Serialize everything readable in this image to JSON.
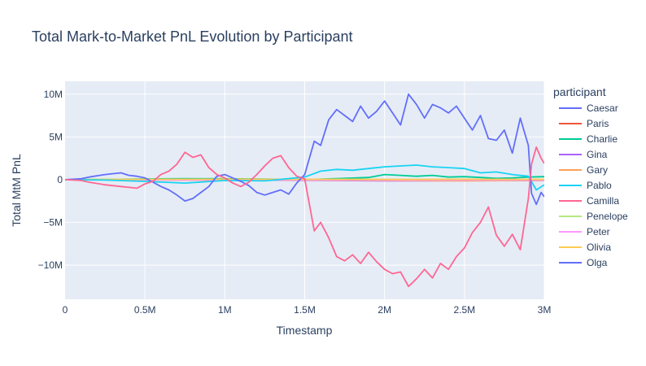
{
  "chart_data": {
    "type": "line",
    "title": "Total Mark-to-Market PnL Evolution by Participant",
    "xlabel": "Timestamp",
    "ylabel": "Total MtM PnL",
    "xlim": [
      0,
      3000000
    ],
    "ylim": [
      -14000000,
      11500000
    ],
    "x_ticks": [
      {
        "value": 0,
        "label": "0"
      },
      {
        "value": 500000,
        "label": "0.5M"
      },
      {
        "value": 1000000,
        "label": "1M"
      },
      {
        "value": 1500000,
        "label": "1.5M"
      },
      {
        "value": 2000000,
        "label": "2M"
      },
      {
        "value": 2500000,
        "label": "2.5M"
      },
      {
        "value": 3000000,
        "label": "3M"
      }
    ],
    "y_ticks": [
      {
        "value": 10000000,
        "label": "10M"
      },
      {
        "value": 5000000,
        "label": "5M"
      },
      {
        "value": 0,
        "label": "0"
      },
      {
        "value": -5000000,
        "label": "−5M"
      },
      {
        "value": -10000000,
        "label": "−10M"
      }
    ],
    "grid": true,
    "legend_title": "participant",
    "legend_position": "right",
    "series": [
      {
        "name": "Caesar",
        "color": "#636efa",
        "x": [
          0,
          100000,
          200000,
          300000,
          400000,
          500000,
          600000,
          700000,
          800000,
          900000,
          1000000,
          1100000,
          1200000,
          1300000,
          1400000,
          1500000,
          1550000,
          1600000,
          1700000,
          1800000,
          1900000,
          2000000,
          2100000,
          2200000,
          2300000,
          2400000,
          2500000,
          2600000,
          2700000,
          2800000,
          2900000,
          3000000
        ],
        "y": [
          0,
          0,
          0,
          0,
          0,
          0,
          0,
          0,
          0,
          0,
          0,
          0,
          0,
          0,
          0,
          0,
          0,
          0,
          0,
          0,
          0,
          0,
          0,
          0,
          0,
          0,
          0,
          0,
          0,
          0,
          0,
          0
        ]
      },
      {
        "name": "Paris",
        "color": "#EF553B",
        "x": [
          0,
          500000,
          1000000,
          1500000,
          2000000,
          2500000,
          3000000
        ],
        "y": [
          0,
          0,
          0,
          0,
          0,
          0,
          0
        ]
      },
      {
        "name": "Charlie",
        "color": "#00cc96",
        "x": [
          0,
          250000,
          500000,
          750000,
          1000000,
          1250000,
          1500000,
          1750000,
          1900000,
          2000000,
          2100000,
          2200000,
          2300000,
          2400000,
          2500000,
          2600000,
          2700000,
          2800000,
          2900000,
          3000000
        ],
        "y": [
          0,
          20000,
          80000,
          120000,
          100000,
          60000,
          0,
          150000,
          250000,
          600000,
          500000,
          400000,
          500000,
          300000,
          350000,
          250000,
          150000,
          200000,
          300000,
          350000
        ]
      },
      {
        "name": "Gina",
        "color": "#ab63fa",
        "x": [
          0,
          500000,
          1000000,
          1500000,
          2000000,
          2500000,
          3000000
        ],
        "y": [
          0,
          -20000,
          -50000,
          -80000,
          -150000,
          -120000,
          -100000
        ]
      },
      {
        "name": "Gary",
        "color": "#FFA15A",
        "x": [
          0,
          500000,
          1000000,
          1500000,
          2000000,
          2500000,
          3000000
        ],
        "y": [
          0,
          -30000,
          -60000,
          -40000,
          -100000,
          -150000,
          -80000
        ]
      },
      {
        "name": "Pablo",
        "color": "#19d3f3",
        "x": [
          0,
          250000,
          500000,
          750000,
          800000,
          1000000,
          1250000,
          1500000,
          1600000,
          1700000,
          1800000,
          1900000,
          2000000,
          2100000,
          2200000,
          2300000,
          2400000,
          2500000,
          2600000,
          2700000,
          2800000,
          2900000,
          2950000,
          3000000
        ],
        "y": [
          0,
          -50000,
          -200000,
          -400000,
          -350000,
          -100000,
          -150000,
          300000,
          1000000,
          1200000,
          1100000,
          1300000,
          1500000,
          1600000,
          1700000,
          1500000,
          1400000,
          1300000,
          800000,
          900000,
          600000,
          400000,
          -1200000,
          -600000
        ]
      },
      {
        "name": "Camilla",
        "color": "#FF6692",
        "x": [
          0,
          100000,
          150000,
          250000,
          350000,
          450000,
          500000,
          550000,
          600000,
          650000,
          700000,
          750000,
          800000,
          850000,
          900000,
          950000,
          1000000,
          1050000,
          1100000,
          1150000,
          1200000,
          1250000,
          1300000,
          1350000,
          1400000,
          1450000,
          1500000,
          1560000,
          1600000,
          1650000,
          1700000,
          1750000,
          1800000,
          1850000,
          1900000,
          1950000,
          2000000,
          2050000,
          2100000,
          2150000,
          2200000,
          2250000,
          2300000,
          2350000,
          2400000,
          2450000,
          2500000,
          2550000,
          2600000,
          2650000,
          2700000,
          2750000,
          2800000,
          2850000,
          2900000,
          2920000,
          2950000,
          2980000,
          3000000
        ],
        "y": [
          0,
          -100000,
          -300000,
          -600000,
          -800000,
          -1000000,
          -500000,
          -200000,
          600000,
          1000000,
          1800000,
          3200000,
          2600000,
          2900000,
          1400000,
          600000,
          200000,
          -400000,
          -800000,
          -300000,
          600000,
          1600000,
          2500000,
          2800000,
          1400000,
          400000,
          100000,
          -6000000,
          -5000000,
          -6800000,
          -9000000,
          -9500000,
          -8800000,
          -9800000,
          -8500000,
          -9600000,
          -10500000,
          -11000000,
          -10800000,
          -12500000,
          -11600000,
          -10500000,
          -11500000,
          -9800000,
          -10500000,
          -9000000,
          -8000000,
          -6200000,
          -5000000,
          -3200000,
          -6500000,
          -7800000,
          -6400000,
          -8200000,
          -2200000,
          1800000,
          3800000,
          2500000,
          1900000
        ]
      },
      {
        "name": "Penelope",
        "color": "#B6E880",
        "x": [
          0,
          500000,
          1000000,
          1500000,
          2000000,
          2500000,
          3000000
        ],
        "y": [
          0,
          30000,
          20000,
          40000,
          30000,
          20000,
          10000
        ]
      },
      {
        "name": "Peter",
        "color": "#FF97FF",
        "x": [
          0,
          500000,
          1000000,
          1500000,
          2000000,
          2500000,
          3000000
        ],
        "y": [
          0,
          -20000,
          -40000,
          -30000,
          -60000,
          -50000,
          -40000
        ]
      },
      {
        "name": "Olivia",
        "color": "#FECB52",
        "x": [
          0,
          500000,
          1000000,
          1500000,
          2000000,
          2500000,
          3000000
        ],
        "y": [
          0,
          30000,
          50000,
          30000,
          20000,
          40000,
          30000
        ]
      },
      {
        "name": "Olga",
        "color": "#636efa",
        "x": [
          0,
          100000,
          150000,
          250000,
          350000,
          400000,
          450000,
          500000,
          550000,
          600000,
          650000,
          700000,
          750000,
          800000,
          850000,
          900000,
          950000,
          1000000,
          1050000,
          1100000,
          1150000,
          1200000,
          1250000,
          1300000,
          1350000,
          1400000,
          1450000,
          1500000,
          1560000,
          1600000,
          1650000,
          1700000,
          1750000,
          1800000,
          1850000,
          1900000,
          1950000,
          2000000,
          2050000,
          2100000,
          2150000,
          2200000,
          2250000,
          2300000,
          2350000,
          2400000,
          2450000,
          2500000,
          2550000,
          2600000,
          2650000,
          2700000,
          2750000,
          2800000,
          2850000,
          2900000,
          2920000,
          2950000,
          2980000,
          3000000
        ],
        "y": [
          0,
          100000,
          300000,
          600000,
          800000,
          500000,
          400000,
          200000,
          -300000,
          -800000,
          -1200000,
          -1800000,
          -2500000,
          -2200000,
          -1500000,
          -800000,
          400000,
          600000,
          200000,
          -200000,
          -700000,
          -1500000,
          -1800000,
          -1500000,
          -1200000,
          -1700000,
          -400000,
          600000,
          4500000,
          4000000,
          7000000,
          8200000,
          7500000,
          6800000,
          8600000,
          7200000,
          8000000,
          9200000,
          7800000,
          6400000,
          10000000,
          8800000,
          7200000,
          8800000,
          8400000,
          7800000,
          8600000,
          7200000,
          5800000,
          7500000,
          4800000,
          4600000,
          5800000,
          3100000,
          7200000,
          4000000,
          -1600000,
          -2900000,
          -1500000,
          -2000000
        ]
      }
    ]
  }
}
